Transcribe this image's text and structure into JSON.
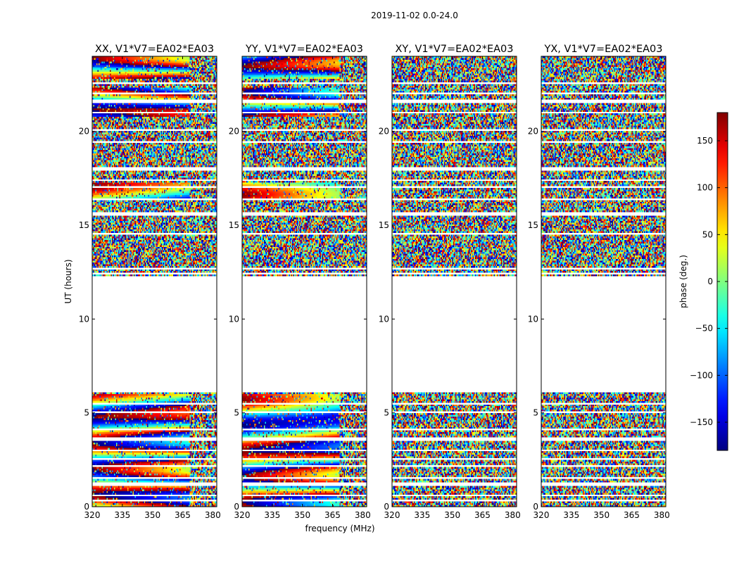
{
  "figure_title": "2019-11-02 0.0-24.0",
  "chart_data": {
    "type": "heatmap",
    "title": "2019-11-02 0.0-24.0",
    "xlabel": "frequency (MHz)",
    "ylabel": "UT (hours)",
    "xlim": [
      320,
      382
    ],
    "ylim": [
      0,
      24
    ],
    "xticks": [
      320,
      335,
      350,
      365,
      380
    ],
    "yticks": [
      0,
      5,
      10,
      15,
      20
    ],
    "blank_utc_range": [
      6.1,
      12.3
    ],
    "panels": [
      {
        "title": "XX, V1*V7=EA02*EA03",
        "pol": "XX",
        "coherence": 0.35,
        "show_ylabel": true,
        "show_xlabel": false
      },
      {
        "title": "YY, V1*V7=EA02*EA03",
        "pol": "YY",
        "coherence": 0.45,
        "show_ylabel": false,
        "show_xlabel": true
      },
      {
        "title": "XY, V1*V7=EA02*EA03",
        "pol": "XY",
        "coherence": 0.0,
        "show_ylabel": false,
        "show_xlabel": false
      },
      {
        "title": "YX, V1*V7=EA02*EA03",
        "pol": "YX",
        "coherence": 0.0,
        "show_ylabel": false,
        "show_xlabel": false
      }
    ],
    "colorbar": {
      "label": "phase (deg.)",
      "range": [
        -180,
        180
      ],
      "ticks": [
        -150,
        -100,
        -50,
        0,
        50,
        100,
        150
      ],
      "tick_labels": [
        "−150",
        "−100",
        "−50",
        "0",
        "50",
        "100",
        "150"
      ],
      "colormap": "jet"
    }
  }
}
